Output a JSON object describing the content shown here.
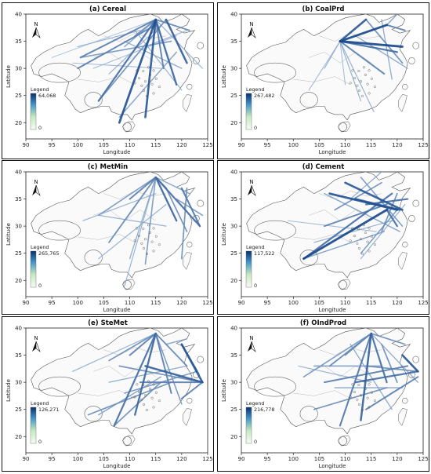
{
  "figure": {
    "panels": [
      {
        "id": "a",
        "title": "(a) Cereal",
        "legend_label": "Legend",
        "legend_max": "64,068",
        "legend_min": "0"
      },
      {
        "id": "b",
        "title": "(b) CoalPrd",
        "legend_label": "Legend",
        "legend_max": "267,482",
        "legend_min": "0"
      },
      {
        "id": "c",
        "title": "(c) MetMin",
        "legend_label": "Legend",
        "legend_max": "265,765",
        "legend_min": "0"
      },
      {
        "id": "d",
        "title": "(d) Cement",
        "legend_label": "Legend",
        "legend_max": "117,522",
        "legend_min": "0"
      },
      {
        "id": "e",
        "title": "(e) SteMet",
        "legend_label": "Legend",
        "legend_max": "126,271",
        "legend_min": "0"
      },
      {
        "id": "f",
        "title": "(f) OIndProd",
        "legend_label": "Legend",
        "legend_max": "216,778",
        "legend_min": "0"
      }
    ],
    "axes": {
      "xlabel": "Longitude",
      "ylabel": "Latitude",
      "xticks": [
        "90",
        "95",
        "100",
        "105",
        "110",
        "115",
        "120",
        "125"
      ],
      "yticks": [
        "20",
        "25",
        "30",
        "35",
        "40"
      ],
      "xlim": [
        90,
        125
      ],
      "ylim": [
        17,
        40
      ]
    },
    "north_arrow_label": "N",
    "colors": {
      "flow_light": "#c6dbef",
      "flow_mid": "#4a85c0",
      "flow_dark": "#0c3f86",
      "legend_top": "#08306b",
      "legend_mid": "#4292c6",
      "legend_low": "#c7e9c0",
      "legend_bottom": "#f7fcf5",
      "boundary": "#555555"
    }
  }
}
